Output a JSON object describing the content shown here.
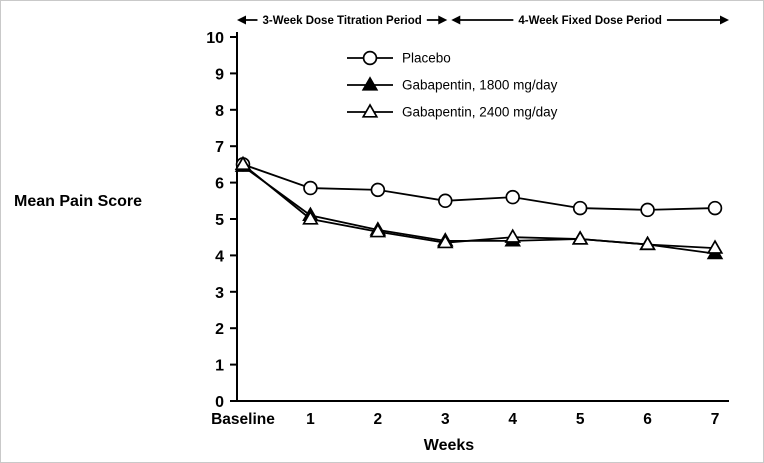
{
  "chart_data": {
    "type": "line",
    "title": "",
    "xlabel": "Weeks",
    "ylabel": "Mean Pain Score",
    "ylim": [
      0,
      10
    ],
    "yticks": [
      0,
      1,
      2,
      3,
      4,
      5,
      6,
      7,
      8,
      9,
      10
    ],
    "categories": [
      "Baseline",
      "1",
      "2",
      "3",
      "4",
      "5",
      "6",
      "7"
    ],
    "series": [
      {
        "name": "Placebo",
        "marker": "circle-open",
        "color": "#000000",
        "values": [
          6.5,
          5.85,
          5.8,
          5.5,
          5.6,
          5.3,
          5.25,
          5.3
        ]
      },
      {
        "name": "Gabapentin, 1800 mg/day",
        "marker": "triangle-filled",
        "color": "#000000",
        "values": [
          6.45,
          5.1,
          4.7,
          4.4,
          4.4,
          4.45,
          4.3,
          4.05
        ]
      },
      {
        "name": "Gabapentin, 2400 mg/day",
        "marker": "triangle-open",
        "color": "#000000",
        "values": [
          6.5,
          5.0,
          4.65,
          4.35,
          4.5,
          4.45,
          4.3,
          4.2
        ]
      }
    ],
    "annotations": [
      {
        "label": "3-Week Dose Titration Period",
        "from_category": "Baseline",
        "to_category": "3"
      },
      {
        "label": "4-Week Fixed Dose Period",
        "from_category": "3",
        "to_category": "7"
      }
    ],
    "legend_position": "top-right",
    "grid": false,
    "colors": {
      "line": "#000000",
      "background": "#ffffff"
    }
  }
}
